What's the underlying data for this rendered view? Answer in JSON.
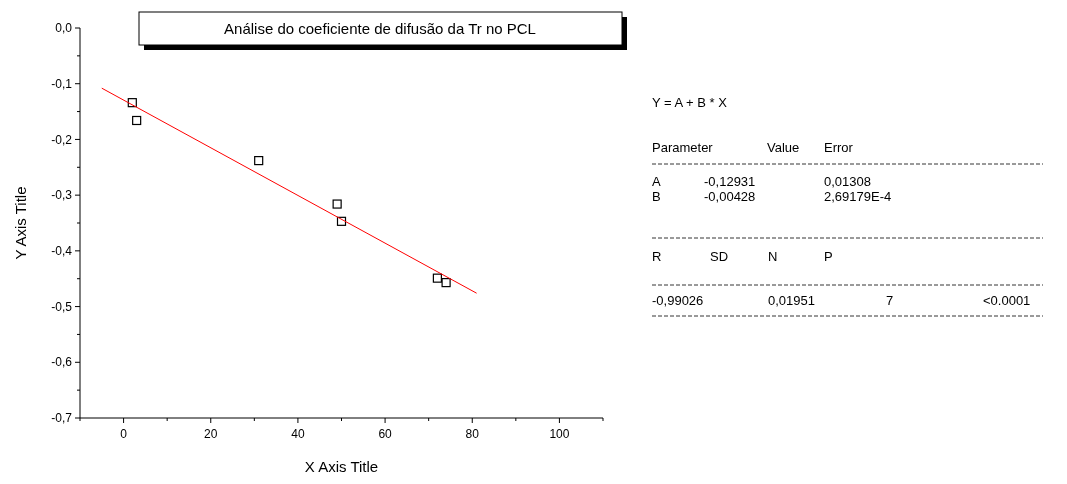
{
  "chart_data": {
    "type": "scatter",
    "title": "Análise do coeficiente de difusão da Tr no PCL",
    "xlabel": "X Axis Title",
    "ylabel": "Y Axis Title",
    "xlim": [
      -10,
      110
    ],
    "ylim": [
      -0.7,
      0
    ],
    "xticks": [
      {
        "value": -10,
        "label": null
      },
      0,
      {
        "value": 10,
        "label": null
      },
      20,
      {
        "value": 30,
        "label": null
      },
      40,
      {
        "value": 50,
        "label": null
      },
      60,
      {
        "value": 70,
        "label": null
      },
      80,
      {
        "value": 90,
        "label": null
      },
      100,
      {
        "value": 110,
        "label": null
      }
    ],
    "yticks": [
      {
        "value": -0.7,
        "label": "-0,7"
      },
      {
        "value": -0.65,
        "label": null
      },
      {
        "value": -0.6,
        "label": "-0,6"
      },
      {
        "value": -0.55,
        "label": null
      },
      {
        "value": -0.5,
        "label": "-0,5"
      },
      {
        "value": -0.45,
        "label": null
      },
      {
        "value": -0.4,
        "label": "-0,4"
      },
      {
        "value": -0.35,
        "label": null
      },
      {
        "value": -0.3,
        "label": "-0,3"
      },
      {
        "value": -0.25,
        "label": null
      },
      {
        "value": -0.2,
        "label": "-0,2"
      },
      {
        "value": -0.15,
        "label": null
      },
      {
        "value": -0.1,
        "label": "-0,1"
      },
      {
        "value": -0.05,
        "label": null
      },
      {
        "value": 0,
        "label": "0,0"
      }
    ],
    "marker": "square",
    "grid": false,
    "series": [
      {
        "color": "#000000",
        "x": [
          2,
          3,
          31,
          49,
          50,
          72,
          74
        ],
        "values": [
          -0.134,
          -0.166,
          -0.238,
          -0.316,
          -0.347,
          -0.449,
          -0.457
        ]
      },
      {
        "type": "line",
        "marker": "none",
        "color": "#ff0000",
        "x": [
          -5,
          81
        ],
        "values": [
          -0.108,
          -0.476
        ]
      }
    ],
    "annotations": [
      "Y = A + B * X",
      "Parameter",
      "Value",
      "Error",
      "A",
      "-0,12931",
      "0,01308",
      "B",
      "-0,00428",
      "2,69179E-4",
      "R",
      "SD",
      "N",
      "P",
      "-0,99026",
      "0,01951",
      "7",
      "<0.0001"
    ]
  }
}
